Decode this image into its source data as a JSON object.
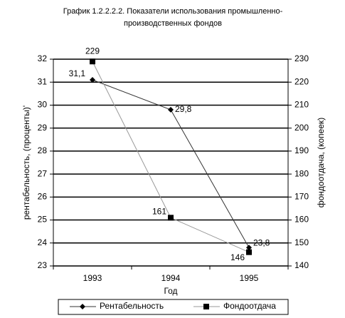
{
  "chart_data": {
    "type": "line",
    "title": [
      "График 1.2.2.2.2.  Показатели использования промышленно-",
      "производственных фондов"
    ],
    "x_label": "Год",
    "y_label": "рентабельность, (проценты)'",
    "y2_label": "фондоотдача, (копеек)",
    "categories": [
      "1993",
      "1994",
      "1995"
    ],
    "series": [
      {
        "name": "Рентабельность",
        "color": "#333333",
        "marker": "diamond",
        "marker_color": "#000000",
        "values": [
          31.1,
          29.8,
          23.8
        ],
        "value_labels": [
          "31,1",
          "29,8",
          "23,8"
        ]
      },
      {
        "name": "Фондоотдача",
        "color": "#999999",
        "marker": "square",
        "marker_color": "#000000",
        "axis": "y2",
        "values": [
          229,
          161,
          146
        ]
      }
    ],
    "ylim": [
      23,
      32
    ],
    "yticks": [
      23,
      24,
      25,
      26,
      27,
      28,
      29,
      30,
      31,
      32
    ],
    "y2lim": [
      140,
      230
    ],
    "y2ticks": [
      140,
      150,
      160,
      170,
      180,
      190,
      200,
      210,
      220,
      230
    ],
    "grid": true,
    "legend": "bottom"
  }
}
